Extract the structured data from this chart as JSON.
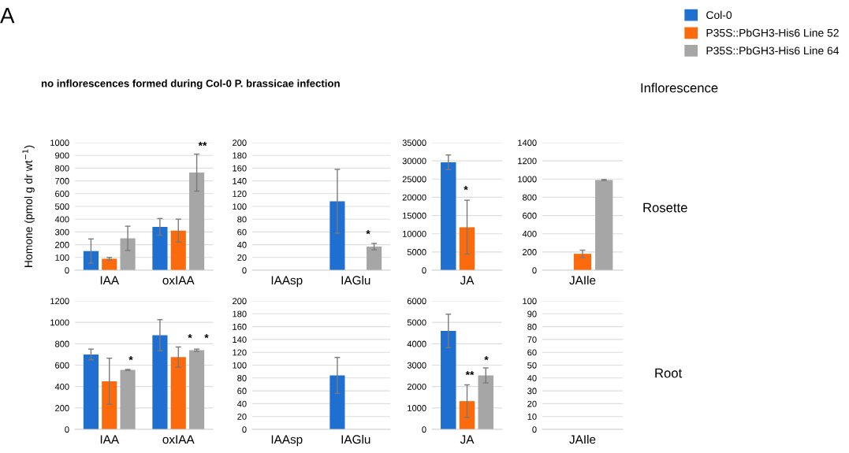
{
  "chart_data": [
    {
      "type": "bar",
      "title": "no inflorescences formed during Col-0 P. brassicae infection",
      "ylabel": "Homone (pmol g dr wt$^{−1}$)",
      "annotations": [
        "A",
        "Inflorescence",
        "Rosette",
        "**"
      ],
      "categories": [
        "IAA",
        "oxIAA"
      ],
      "series": [
        {
          "name": "Col-0",
          "color": "#1f6fd1",
          "values": [
            150,
            340
          ],
          "errors": [
            95,
            65
          ]
        },
        {
          "name": "P35S::PbGH3-His6 Line 52",
          "color": "#fb6a0c",
          "values": [
            90,
            310
          ],
          "errors": [
            10,
            90
          ]
        },
        {
          "name": "P35S::PbGH3-His6 Line 64",
          "color": "#a6a6a6",
          "values": [
            250,
            765
          ],
          "errors": [
            95,
            145
          ]
        }
      ],
      "ylim": [
        0,
        1000
      ],
      "yticks": [
        0,
        100,
        200,
        300,
        400,
        500,
        600,
        700,
        800,
        900,
        1000
      ],
      "grid": "y",
      "legend": "top right"
    },
    {
      "type": "bar",
      "annotations": [
        "*"
      ],
      "categories": [
        "IAAsp",
        "IAGlu"
      ],
      "series": [
        {
          "color": "#1f6fd1",
          "values": [
            null,
            108
          ],
          "errors": [
            null,
            50
          ]
        },
        {
          "color": "#fb6a0c",
          "values": [
            null,
            null
          ]
        },
        {
          "color": "#a6a6a6",
          "values": [
            null,
            37
          ],
          "errors": [
            null,
            5
          ]
        }
      ],
      "ylim": [
        0,
        200
      ],
      "yticks": [
        0,
        20,
        40,
        60,
        80,
        100,
        120,
        140,
        160,
        180,
        200
      ],
      "grid": "y"
    },
    {
      "type": "bar",
      "annotations": [
        "*"
      ],
      "categories": [
        "JA"
      ],
      "series": [
        {
          "color": "#1f6fd1",
          "values": [
            29600
          ],
          "errors": [
            2000
          ]
        },
        {
          "color": "#fb6a0c",
          "values": [
            11800
          ],
          "errors": [
            7400
          ]
        },
        {
          "color": "#a6a6a6",
          "values": [
            null
          ]
        }
      ],
      "ylim": [
        0,
        35000
      ],
      "yticks": [
        0,
        5000,
        10000,
        15000,
        20000,
        25000,
        30000,
        35000
      ],
      "grid": "y"
    },
    {
      "type": "bar",
      "categories": [
        "JAIle"
      ],
      "series": [
        {
          "color": "#1f6fd1",
          "values": [
            null
          ]
        },
        {
          "color": "#fb6a0c",
          "values": [
            180
          ],
          "errors": [
            40
          ]
        },
        {
          "color": "#a6a6a6",
          "values": [
            990
          ],
          "errors": [
            5
          ]
        }
      ],
      "ylim": [
        0,
        1400
      ],
      "yticks": [
        0,
        200,
        400,
        600,
        800,
        1000,
        1200,
        1400
      ],
      "grid": "y"
    },
    {
      "type": "bar",
      "annotations": [
        "Root",
        "*",
        "*",
        "*"
      ],
      "categories": [
        "IAA",
        "oxIAA"
      ],
      "series": [
        {
          "color": "#1f6fd1",
          "values": [
            700,
            880
          ],
          "errors": [
            50,
            145
          ]
        },
        {
          "color": "#fb6a0c",
          "values": [
            450,
            675
          ],
          "errors": [
            215,
            95
          ]
        },
        {
          "color": "#a6a6a6",
          "values": [
            555,
            740
          ],
          "errors": [
            5,
            10
          ]
        }
      ],
      "ylim": [
        0,
        1200
      ],
      "yticks": [
        0,
        200,
        400,
        600,
        800,
        1000,
        1200
      ],
      "grid": "y"
    },
    {
      "type": "bar",
      "categories": [
        "IAAsp",
        "IAGlu"
      ],
      "series": [
        {
          "color": "#1f6fd1",
          "values": [
            null,
            84
          ],
          "errors": [
            null,
            28
          ]
        },
        {
          "color": "#fb6a0c",
          "values": [
            null,
            null
          ]
        },
        {
          "color": "#a6a6a6",
          "values": [
            null,
            null
          ]
        }
      ],
      "ylim": [
        0,
        200
      ],
      "yticks": [
        0,
        20,
        40,
        60,
        80,
        100,
        120,
        140,
        160,
        180,
        200
      ],
      "grid": "y"
    },
    {
      "type": "bar",
      "annotations": [
        "**",
        "*"
      ],
      "categories": [
        "JA"
      ],
      "series": [
        {
          "color": "#1f6fd1",
          "values": [
            4600
          ],
          "errors": [
            780
          ]
        },
        {
          "color": "#fb6a0c",
          "values": [
            1320
          ],
          "errors": [
            760
          ]
        },
        {
          "color": "#a6a6a6",
          "values": [
            2520
          ],
          "errors": [
            350
          ]
        }
      ],
      "ylim": [
        0,
        6000
      ],
      "yticks": [
        0,
        1000,
        2000,
        3000,
        4000,
        5000,
        6000
      ],
      "grid": "y"
    },
    {
      "type": "bar",
      "categories": [
        "JAIle"
      ],
      "series": [
        {
          "color": "#1f6fd1",
          "values": [
            null
          ]
        },
        {
          "color": "#fb6a0c",
          "values": [
            null
          ]
        },
        {
          "color": "#a6a6a6",
          "values": [
            null
          ]
        }
      ],
      "ylim": [
        0,
        100
      ],
      "yticks": [
        0,
        10,
        20,
        30,
        40,
        50,
        60,
        70,
        80,
        90,
        100
      ],
      "grid": "y"
    }
  ]
}
